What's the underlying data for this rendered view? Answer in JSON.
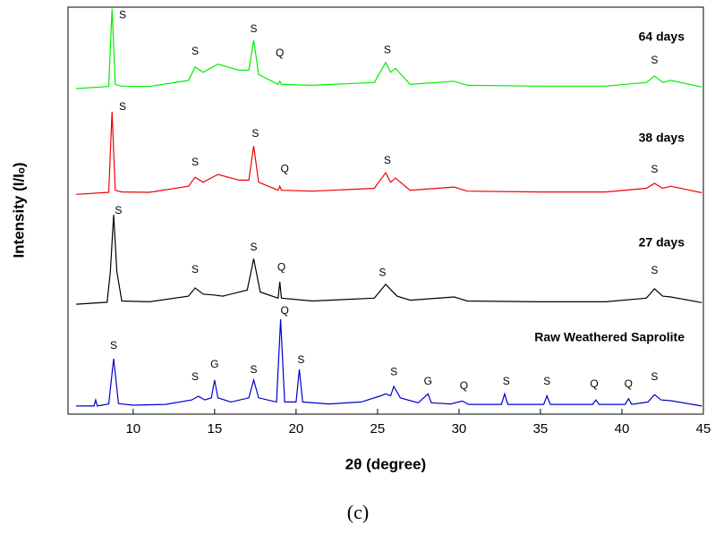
{
  "chart_data": {
    "type": "line",
    "x_label": "2θ (degree)",
    "y_label": "Intensity (I/Iₒ)",
    "caption": "(c)",
    "xlim": [
      6,
      45
    ],
    "ylim": [
      0,
      100
    ],
    "xticks": [
      10,
      15,
      20,
      25,
      30,
      35,
      40,
      45
    ],
    "series": [
      {
        "name": "Raw Weathered Saprolite",
        "color": "#0000cc",
        "x": [
          6.5,
          7.6,
          7.7,
          7.8,
          8.5,
          8.8,
          9.1,
          10,
          12,
          13.6,
          14,
          14.4,
          14.8,
          15,
          15.2,
          16,
          17.1,
          17.4,
          17.7,
          18.8,
          19.05,
          19.3,
          20.0,
          20.2,
          20.4,
          22,
          24,
          25.2,
          25.5,
          25.8,
          26,
          26.4,
          27.5,
          28.1,
          28.3,
          29.5,
          30.2,
          30.6,
          32.6,
          32.8,
          33,
          35.2,
          35.4,
          35.6,
          38.2,
          38.4,
          38.6,
          40.2,
          40.4,
          40.6,
          41.6,
          42,
          42.4,
          43,
          44.9
        ],
        "values": [
          2,
          2,
          3.5,
          2,
          2.5,
          13.6,
          2.6,
          2.2,
          2.4,
          3.5,
          4.4,
          3.5,
          4,
          8.4,
          4,
          3,
          4,
          8.4,
          4,
          3,
          23.3,
          3,
          3,
          11,
          3,
          2.5,
          3,
          4.5,
          5,
          4.5,
          6.8,
          4,
          2.8,
          5,
          2.8,
          2.5,
          3.2,
          2.4,
          2.4,
          5,
          2.4,
          2.4,
          4.5,
          2.4,
          2.4,
          3.5,
          2.4,
          2.4,
          3.8,
          2.4,
          3,
          4.8,
          3.5,
          3.3,
          2
        ]
      },
      {
        "name": "27 days",
        "color": "#000000",
        "x": [
          6.5,
          8.4,
          8.6,
          8.8,
          9.0,
          9.3,
          11,
          13.4,
          13.8,
          14.3,
          14.9,
          15.5,
          17.0,
          17.4,
          17.8,
          18.9,
          19.0,
          19.1,
          21,
          24.8,
          25.5,
          26.2,
          27,
          29.7,
          30.5,
          35,
          39,
          41.5,
          42,
          42.5,
          43,
          44.9
        ],
        "values": [
          27,
          27.5,
          35,
          49,
          35,
          27.8,
          27.6,
          29,
          31,
          29.5,
          29.3,
          29,
          30.5,
          38.2,
          30,
          28.5,
          32.5,
          28.5,
          27.8,
          28.5,
          31.9,
          29,
          28,
          28.8,
          27.8,
          27.6,
          27.6,
          28.5,
          30.8,
          29,
          28.8,
          27.4
        ]
      },
      {
        "name": "38 days",
        "color": "#ee0000",
        "x": [
          6.5,
          8.5,
          8.7,
          8.9,
          9.3,
          11,
          13.4,
          13.8,
          14.3,
          15.2,
          16.5,
          17.1,
          17.4,
          17.7,
          18.9,
          19.0,
          19.1,
          21,
          24.8,
          25.5,
          25.8,
          26.1,
          27,
          29.7,
          30.5,
          35,
          39,
          41.5,
          42,
          42.5,
          43,
          44.9
        ],
        "values": [
          54,
          54.5,
          74.3,
          55,
          54.6,
          54.5,
          56,
          58.2,
          57,
          58.9,
          57.5,
          57.5,
          65.9,
          57,
          55,
          56,
          55,
          54.8,
          55.5,
          59.3,
          57,
          58,
          55,
          55.8,
          54.8,
          54.6,
          54.6,
          55.5,
          56.7,
          55.5,
          56,
          54.4
        ]
      },
      {
        "name": "64 days",
        "color": "#00ee00",
        "x": [
          6.5,
          8.5,
          8.7,
          8.9,
          9.3,
          11,
          13.4,
          13.8,
          14.3,
          15.2,
          16.5,
          17.1,
          17.4,
          17.7,
          18.9,
          19.0,
          19.1,
          21,
          24.8,
          25.5,
          25.8,
          26.1,
          27,
          29.7,
          30.5,
          35,
          39,
          41.5,
          42,
          42.5,
          43,
          44.9
        ],
        "values": [
          80,
          80.5,
          99.6,
          81,
          80.6,
          80.5,
          82,
          85.3,
          84,
          86,
          84.5,
          84.5,
          91.9,
          83.5,
          81,
          81.8,
          81,
          80.8,
          81.5,
          86.4,
          84,
          85,
          81,
          81.8,
          80.8,
          80.6,
          80.6,
          81.5,
          83.1,
          81.5,
          82,
          80.4
        ]
      }
    ],
    "annotations": [
      {
        "text": "S",
        "x": 9.35,
        "y": 98
      },
      {
        "text": "S",
        "x": 13.8,
        "y": 89
      },
      {
        "text": "S",
        "x": 17.4,
        "y": 94.5
      },
      {
        "text": "Q",
        "x": 19.0,
        "y": 88.6
      },
      {
        "text": "S",
        "x": 25.6,
        "y": 89.4
      },
      {
        "text": "S",
        "x": 42,
        "y": 86.8
      },
      {
        "text": "S",
        "x": 9.35,
        "y": 75.4
      },
      {
        "text": "S",
        "x": 13.8,
        "y": 61.8
      },
      {
        "text": "S",
        "x": 17.5,
        "y": 68.8
      },
      {
        "text": "Q",
        "x": 19.3,
        "y": 60.2
      },
      {
        "text": "S",
        "x": 25.6,
        "y": 62.2
      },
      {
        "text": "S",
        "x": 42,
        "y": 60
      },
      {
        "text": "S",
        "x": 9.1,
        "y": 49.9
      },
      {
        "text": "S",
        "x": 13.8,
        "y": 35.4
      },
      {
        "text": "S",
        "x": 17.4,
        "y": 40.9
      },
      {
        "text": "Q",
        "x": 19.1,
        "y": 36
      },
      {
        "text": "S",
        "x": 25.3,
        "y": 34.7
      },
      {
        "text": "S",
        "x": 42,
        "y": 35.2
      },
      {
        "text": "Q",
        "x": 19.3,
        "y": 25.3
      },
      {
        "text": "S",
        "x": 8.8,
        "y": 16.7
      },
      {
        "text": "S",
        "x": 13.8,
        "y": 9
      },
      {
        "text": "G",
        "x": 15,
        "y": 12.1
      },
      {
        "text": "S",
        "x": 17.4,
        "y": 10.8
      },
      {
        "text": "S",
        "x": 20.3,
        "y": 13.2
      },
      {
        "text": "S",
        "x": 26,
        "y": 10.3
      },
      {
        "text": "G",
        "x": 28.1,
        "y": 7.9
      },
      {
        "text": "Q",
        "x": 30.3,
        "y": 6.8
      },
      {
        "text": "S",
        "x": 32.9,
        "y": 7.9
      },
      {
        "text": "S",
        "x": 35.4,
        "y": 7.9
      },
      {
        "text": "Q",
        "x": 38.3,
        "y": 7.3
      },
      {
        "text": "Q",
        "x": 40.4,
        "y": 7.3
      },
      {
        "text": "S",
        "x": 42,
        "y": 9
      }
    ]
  }
}
